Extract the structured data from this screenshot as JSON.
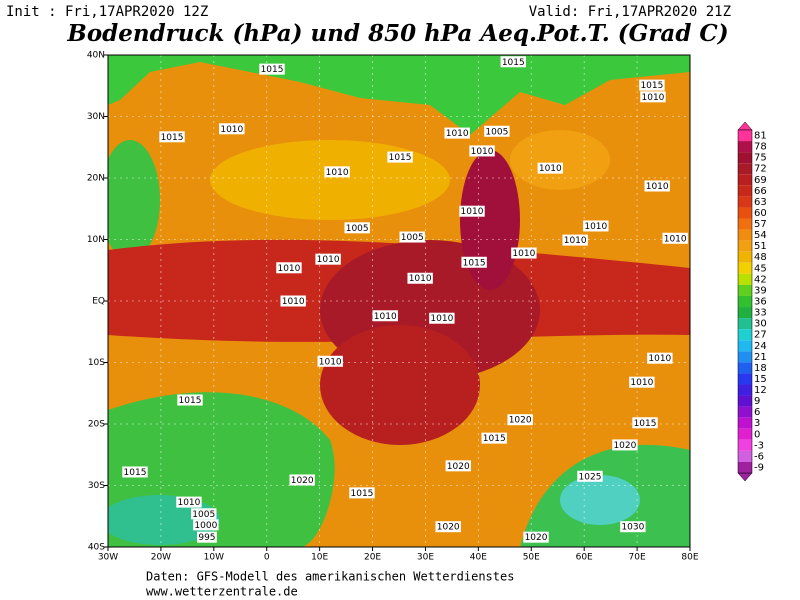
{
  "header": {
    "init": "Init : Fri,17APR2020 12Z",
    "valid": "Valid: Fri,17APR2020 21Z",
    "title": "Bodendruck (hPa) und 850 hPa Aeq.Pot.T. (Grad C)"
  },
  "map": {
    "xlim": [
      -30,
      80
    ],
    "ylim": [
      -40,
      40
    ],
    "xticks": [
      {
        "value": -30,
        "label": "30W"
      },
      {
        "value": -20,
        "label": "20W"
      },
      {
        "value": -10,
        "label": "10W"
      },
      0,
      {
        "value": 10,
        "label": "10E"
      },
      {
        "value": 20,
        "label": "20E"
      },
      {
        "value": 30,
        "label": "30E"
      },
      {
        "value": 40,
        "label": "40E"
      },
      {
        "value": 50,
        "label": "50E"
      },
      {
        "value": 60,
        "label": "60E"
      },
      {
        "value": 70,
        "label": "70E"
      },
      {
        "value": 80,
        "label": "80E"
      }
    ],
    "yticks": [
      {
        "value": 40,
        "label": "40N"
      },
      {
        "value": 30,
        "label": "30N"
      },
      {
        "value": 20,
        "label": "20N"
      },
      {
        "value": 10,
        "label": "10N"
      },
      {
        "value": 0,
        "label": "EQ"
      },
      {
        "value": -10,
        "label": "10S"
      },
      {
        "value": -20,
        "label": "20S"
      },
      {
        "value": -30,
        "label": "30S"
      },
      {
        "value": -40,
        "label": "40S"
      }
    ],
    "grid": true,
    "isobar_labels": [
      {
        "label": "1015",
        "lon": 1.0,
        "lat": 37.7
      },
      {
        "label": "1015",
        "lon": 46.6,
        "lat": 38.9
      },
      {
        "label": "1015",
        "lon": 72.8,
        "lat": 35.1
      },
      {
        "label": "1010",
        "lon": 73.0,
        "lat": 33.2
      },
      {
        "label": "1015",
        "lon": -17.9,
        "lat": 26.7
      },
      {
        "label": "1010",
        "lon": -6.6,
        "lat": 28.0
      },
      {
        "label": "1010",
        "lon": 36.0,
        "lat": 27.3
      },
      {
        "label": "1005",
        "lon": 43.5,
        "lat": 27.6
      },
      {
        "label": "1010",
        "lon": 40.7,
        "lat": 24.4
      },
      {
        "label": "1015",
        "lon": 25.2,
        "lat": 23.4
      },
      {
        "label": "1010",
        "lon": 13.3,
        "lat": 21.0
      },
      {
        "label": "1010",
        "lon": 53.6,
        "lat": 21.6
      },
      {
        "label": "1010",
        "lon": 73.8,
        "lat": 18.7
      },
      {
        "label": "1010",
        "lon": 38.8,
        "lat": 14.6
      },
      {
        "label": "1005",
        "lon": 17.1,
        "lat": 11.9
      },
      {
        "label": "1005",
        "lon": 27.5,
        "lat": 10.4
      },
      {
        "label": "1010",
        "lon": 62.2,
        "lat": 12.2
      },
      {
        "label": "1010",
        "lon": 58.3,
        "lat": 9.9
      },
      {
        "label": "1010",
        "lon": 77.2,
        "lat": 10.2
      },
      {
        "label": "1010",
        "lon": 11.6,
        "lat": 6.8
      },
      {
        "label": "1015",
        "lon": 39.2,
        "lat": 6.3
      },
      {
        "label": "1010",
        "lon": 48.6,
        "lat": 7.8
      },
      {
        "label": "1010",
        "lon": 4.2,
        "lat": 5.4
      },
      {
        "label": "1010",
        "lon": 29.0,
        "lat": 3.7
      },
      {
        "label": "1010",
        "lon": 5.0,
        "lat": 0
      },
      {
        "label": "1010",
        "lon": 22.4,
        "lat": -2.4
      },
      {
        "label": "1010",
        "lon": 33.1,
        "lat": -2.8
      },
      {
        "label": "1010",
        "lon": 12.0,
        "lat": -9.8
      },
      {
        "label": "1010",
        "lon": 74.3,
        "lat": -9.3
      },
      {
        "label": "1010",
        "lon": 70.9,
        "lat": -13.2
      },
      {
        "label": "1015",
        "lon": -14.5,
        "lat": -16.1
      },
      {
        "label": "1020",
        "lon": 47.9,
        "lat": -19.3
      },
      {
        "label": "1015",
        "lon": 71.5,
        "lat": -19.8
      },
      {
        "label": "1015",
        "lon": 43.0,
        "lat": -22.3
      },
      {
        "label": "1020",
        "lon": 67.7,
        "lat": -23.4
      },
      {
        "label": "1020",
        "lon": 36.2,
        "lat": -26.8
      },
      {
        "label": "1025",
        "lon": 61.1,
        "lat": -28.5
      },
      {
        "label": "1015",
        "lon": -24.9,
        "lat": -27.8
      },
      {
        "label": "1020",
        "lon": 6.7,
        "lat": -29.1
      },
      {
        "label": "1015",
        "lon": 18.0,
        "lat": -31.2
      },
      {
        "label": "1010",
        "lon": -14.7,
        "lat": -32.7
      },
      {
        "label": "1005",
        "lon": -11.9,
        "lat": -34.6
      },
      {
        "label": "1000",
        "lon": -11.5,
        "lat": -36.4
      },
      {
        "label": "995",
        "lon": -11.3,
        "lat": -38.4
      },
      {
        "label": "1020",
        "lon": 34.3,
        "lat": -36.7
      },
      {
        "label": "1020",
        "lon": 50.9,
        "lat": -38.4
      },
      {
        "label": "1030",
        "lon": 69.2,
        "lat": -36.7
      }
    ]
  },
  "colorbar": {
    "levels": [
      81,
      78,
      75,
      72,
      69,
      66,
      63,
      60,
      57,
      54,
      51,
      48,
      45,
      42,
      39,
      36,
      33,
      30,
      27,
      24,
      21,
      18,
      15,
      12,
      9,
      6,
      3,
      0,
      -3,
      -6,
      -9
    ],
    "colors": [
      "#ff3399",
      "#b0104a",
      "#a01030",
      "#a81a28",
      "#b82020",
      "#c82818",
      "#d83818",
      "#e85010",
      "#f07010",
      "#f08c10",
      "#f0a010",
      "#f0b400",
      "#f0d000",
      "#b8e000",
      "#60d020",
      "#30c030",
      "#20b040",
      "#20c090",
      "#20d0d0",
      "#20b8f0",
      "#2090f0",
      "#2060f0",
      "#2838f0",
      "#4020e0",
      "#6010d0",
      "#9010d0",
      "#c010d0",
      "#e020d0",
      "#f040e0",
      "#d060e0",
      "#a020a0"
    ]
  },
  "footer": {
    "source": "Daten: GFS-Modell des amerikanischen Wetterdienstes",
    "url": "www.wetterzentrale.de"
  }
}
